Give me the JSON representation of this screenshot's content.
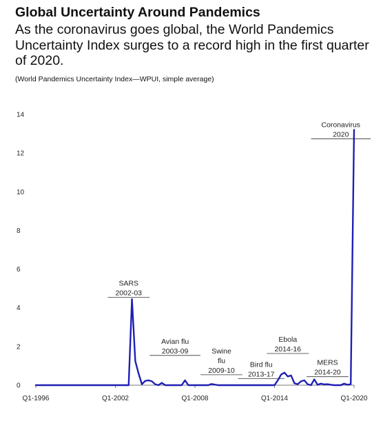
{
  "header": {
    "title": "Global Uncertainty Around Pandemics",
    "subtitle": "As the coronavirus goes global, the World Pandemics Uncertainty Index surges to a record high in the first quarter of 2020.",
    "note": "(World Pandemics Uncertainty Index—WPUI, simple average)"
  },
  "chart_data": {
    "type": "line",
    "title": "Global Uncertainty Around Pandemics",
    "xlabel": "",
    "ylabel": "",
    "ylim": [
      0,
      14
    ],
    "grid": false,
    "line_color": "#1f1fb4",
    "x_tick_labels": [
      "Q1-1996",
      "Q1-2002",
      "Q1-2008",
      "Q1-2014",
      "Q1-2020"
    ],
    "y_ticks": [
      0,
      2,
      4,
      6,
      8,
      10,
      12,
      14
    ],
    "series": [
      {
        "name": "",
        "x": [
          "Q1-1996",
          "Q1-2003",
          "Q2-2003",
          "Q3-2003",
          "Q4-2003",
          "Q1-2004",
          "Q2-2004",
          "Q3-2004",
          "Q4-2004",
          "Q1-2005",
          "Q2-2005",
          "Q3-2005",
          "Q4-2005",
          "Q1-2006",
          "Q2-2006",
          "Q3-2006",
          "Q4-2006",
          "Q1-2007",
          "Q2-2007",
          "Q3-2007",
          "Q4-2007",
          "Q1-2008",
          "Q2-2008",
          "Q3-2008",
          "Q4-2008",
          "Q1-2009",
          "Q2-2009",
          "Q3-2009",
          "Q4-2009",
          "Q1-2010",
          "Q2-2010",
          "Q1-2014",
          "Q2-2014",
          "Q3-2014",
          "Q4-2014",
          "Q1-2015",
          "Q2-2015",
          "Q3-2015",
          "Q4-2015",
          "Q1-2016",
          "Q2-2016",
          "Q3-2016",
          "Q4-2016",
          "Q1-2017",
          "Q2-2017",
          "Q3-2017",
          "Q4-2017",
          "Q1-2018",
          "Q2-2018",
          "Q3-2018",
          "Q4-2018",
          "Q1-2019",
          "Q2-2019",
          "Q3-2019",
          "Q4-2019",
          "Q1-2020"
        ],
        "values": [
          0,
          0,
          4.45,
          1.25,
          0.6,
          0.05,
          0.22,
          0.25,
          0.2,
          0.05,
          0,
          0.12,
          0,
          0,
          0,
          0,
          0,
          0,
          0.25,
          0,
          0,
          0,
          0,
          0,
          0,
          0,
          0.06,
          0.03,
          0,
          0,
          0,
          0,
          0.25,
          0.55,
          0.65,
          0.45,
          0.5,
          0.1,
          0.05,
          0.2,
          0.25,
          0.05,
          0,
          0.3,
          0.02,
          0.08,
          0.04,
          0.05,
          0.02,
          0,
          0,
          0,
          0.08,
          0.02,
          0.05,
          13.2
        ]
      }
    ],
    "annotations": [
      {
        "lines": [
          "SARS",
          "2002-03"
        ],
        "x": "Q1-2003",
        "y": 5.5
      },
      {
        "lines": [
          "Avian flu",
          "2003-09"
        ],
        "x": "Q3-2006",
        "y": 2.5
      },
      {
        "lines": [
          "Swine",
          "flu",
          "2009-10"
        ],
        "x": "Q1-2010",
        "y": 2.0
      },
      {
        "lines": [
          "Bird flu",
          "2013-17"
        ],
        "x": "Q1-2013",
        "y": 1.3
      },
      {
        "lines": [
          "Ebola",
          "2014-16"
        ],
        "x": "Q1-2015",
        "y": 2.6
      },
      {
        "lines": [
          "MERS",
          "2014-20"
        ],
        "x": "Q1-2018",
        "y": 1.4
      },
      {
        "lines": [
          "Coronavirus",
          "2020"
        ],
        "x": "Q1-2019",
        "y": 13.7
      }
    ]
  }
}
